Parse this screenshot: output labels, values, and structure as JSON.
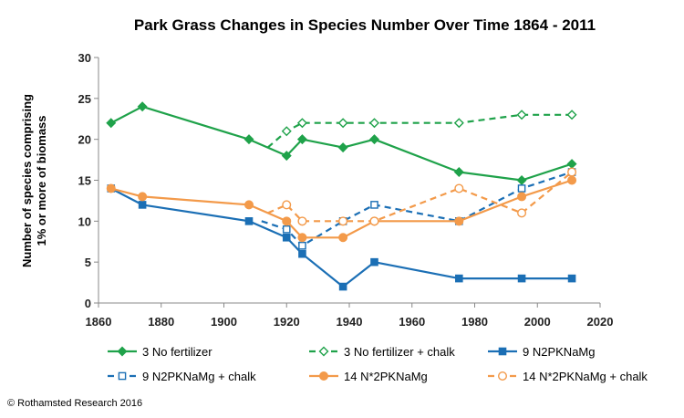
{
  "chart_data": {
    "type": "line",
    "title": "Park Grass Changes in Species Number Over Time 1864 - 2011",
    "ylabel": [
      "Number of species comprising",
      "1% or more of biomass"
    ],
    "xlabel": "",
    "xlim": [
      1860,
      2020
    ],
    "ylim": [
      0,
      30
    ],
    "xticks": [
      1860,
      1880,
      1900,
      1920,
      1940,
      1960,
      1980,
      2000,
      2020
    ],
    "yticks": [
      0,
      5,
      10,
      15,
      20,
      25,
      30
    ],
    "grid": false,
    "legend_position": "bottom",
    "series": [
      {
        "name": "3 No fertilizer",
        "color": "#1fa24a",
        "dash": false,
        "marker": "diamond",
        "filled": true,
        "points": [
          [
            1864,
            22
          ],
          [
            1874,
            24
          ],
          [
            1908,
            20
          ],
          [
            1920,
            18
          ],
          [
            1925,
            20
          ],
          [
            1938,
            19
          ],
          [
            1948,
            20
          ],
          [
            1975,
            16
          ],
          [
            1995,
            15
          ],
          [
            2011,
            17
          ]
        ]
      },
      {
        "name": "3 No fertilizer + chalk",
        "color": "#1fa24a",
        "dash": true,
        "marker": "diamond",
        "filled": false,
        "points": [
          [
            1914,
            19
          ],
          [
            1920,
            21
          ],
          [
            1925,
            22
          ],
          [
            1938,
            22
          ],
          [
            1948,
            22
          ],
          [
            1975,
            22
          ],
          [
            1995,
            23
          ],
          [
            2011,
            23
          ]
        ]
      },
      {
        "name": "9 N2PKNaMg",
        "color": "#1b6fb5",
        "dash": false,
        "marker": "square",
        "filled": true,
        "points": [
          [
            1864,
            14
          ],
          [
            1874,
            12
          ],
          [
            1908,
            10
          ],
          [
            1920,
            8
          ],
          [
            1925,
            6
          ],
          [
            1938,
            2
          ],
          [
            1948,
            5
          ],
          [
            1975,
            3
          ],
          [
            1995,
            3
          ],
          [
            2011,
            3
          ]
        ]
      },
      {
        "name": "9 N2PKNaMg + chalk",
        "color": "#1b6fb5",
        "dash": true,
        "marker": "square",
        "filled": false,
        "points": [
          [
            1912,
            10
          ],
          [
            1920,
            9
          ],
          [
            1925,
            7
          ],
          [
            1938,
            10
          ],
          [
            1948,
            12
          ],
          [
            1975,
            10
          ],
          [
            1995,
            14
          ],
          [
            2011,
            16
          ]
        ]
      },
      {
        "name": "14 N*2PKNaMg",
        "color": "#f39a4a",
        "dash": false,
        "marker": "circle",
        "filled": true,
        "points": [
          [
            1864,
            14
          ],
          [
            1874,
            13
          ],
          [
            1908,
            12
          ],
          [
            1920,
            10
          ],
          [
            1925,
            8
          ],
          [
            1938,
            8
          ],
          [
            1948,
            10
          ],
          [
            1975,
            10
          ],
          [
            1995,
            13
          ],
          [
            2011,
            15
          ]
        ]
      },
      {
        "name": "14 N*2PKNaMg + chalk",
        "color": "#f39a4a",
        "dash": true,
        "marker": "circle",
        "filled": false,
        "points": [
          [
            1914,
            11
          ],
          [
            1920,
            12
          ],
          [
            1925,
            10
          ],
          [
            1938,
            10
          ],
          [
            1948,
            10
          ],
          [
            1975,
            14
          ],
          [
            1995,
            11
          ],
          [
            2011,
            16
          ]
        ]
      }
    ]
  },
  "footer": {
    "copyright": "© Rothamsted Research 2016"
  }
}
